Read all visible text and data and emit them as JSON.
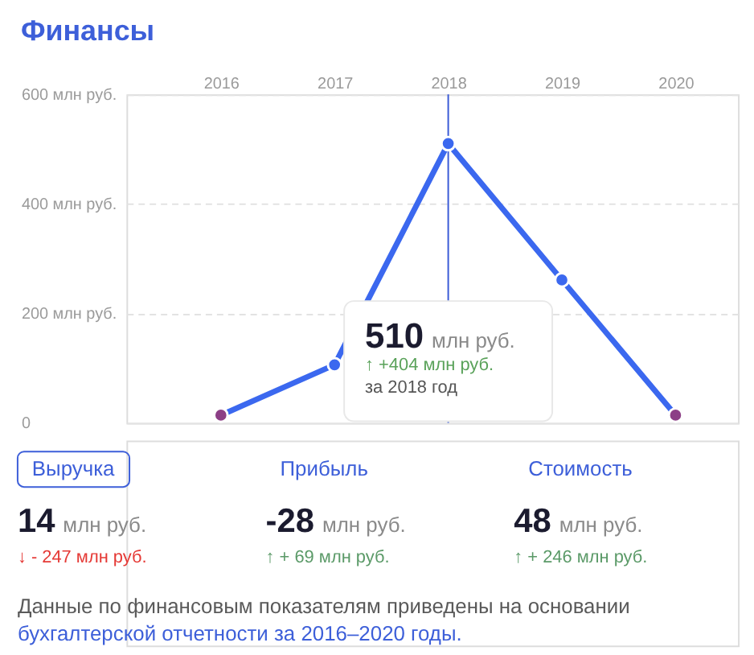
{
  "chart_data": [
    {
      "type": "line",
      "title": "Финансы",
      "categories": [
        "2016",
        "2017",
        "2018",
        "2019",
        "2020"
      ],
      "series": [
        {
          "color": "#3b68ef",
          "values": [
            14,
            106,
            510,
            261,
            14
          ],
          "colors": [
            "#8c3f86",
            "#3b68ef",
            "#3b68ef",
            "#3b68ef",
            "#8c3f86"
          ]
        }
      ],
      "ylim": [
        0,
        600
      ],
      "yticks": [
        0,
        {
          "value": 200,
          "label": "200 млн руб."
        },
        {
          "value": 400,
          "label": "400 млн руб."
        },
        {
          "value": 600,
          "label": "600 млн руб."
        }
      ],
      "grid": "y",
      "marker": "circle",
      "line_style": "solid",
      "ref_lines": [
        {
          "axis": "x",
          "value": "2018",
          "color": "#3b5bd6"
        }
      ],
      "annotations": [
        "510 млн руб.",
        "↑ +404 млн руб.",
        "за 2018 год"
      ]
    },
    {
      "type": "other",
      "categories": [
        "Выручка",
        "Прибыль",
        "Стоимость"
      ],
      "values": [
        14,
        -28,
        48
      ],
      "data_labels": true,
      "ylabel": "млн руб.",
      "colors": [
        "#e53935",
        "#5b9a68",
        "#5b9a68"
      ],
      "annotations": [
        {
          "text": "↓ - 247 млн руб.",
          "x": "Выручка"
        },
        {
          "text": "↑ + 69 млн руб.",
          "x": "Прибыль"
        },
        {
          "text": "↑ + 246 млн руб.",
          "x": "Стоимость"
        },
        "Данные по финансовым показателям приведены на основании",
        "бухгалтерской отчетности за 2016–2020 годы."
      ]
    }
  ]
}
